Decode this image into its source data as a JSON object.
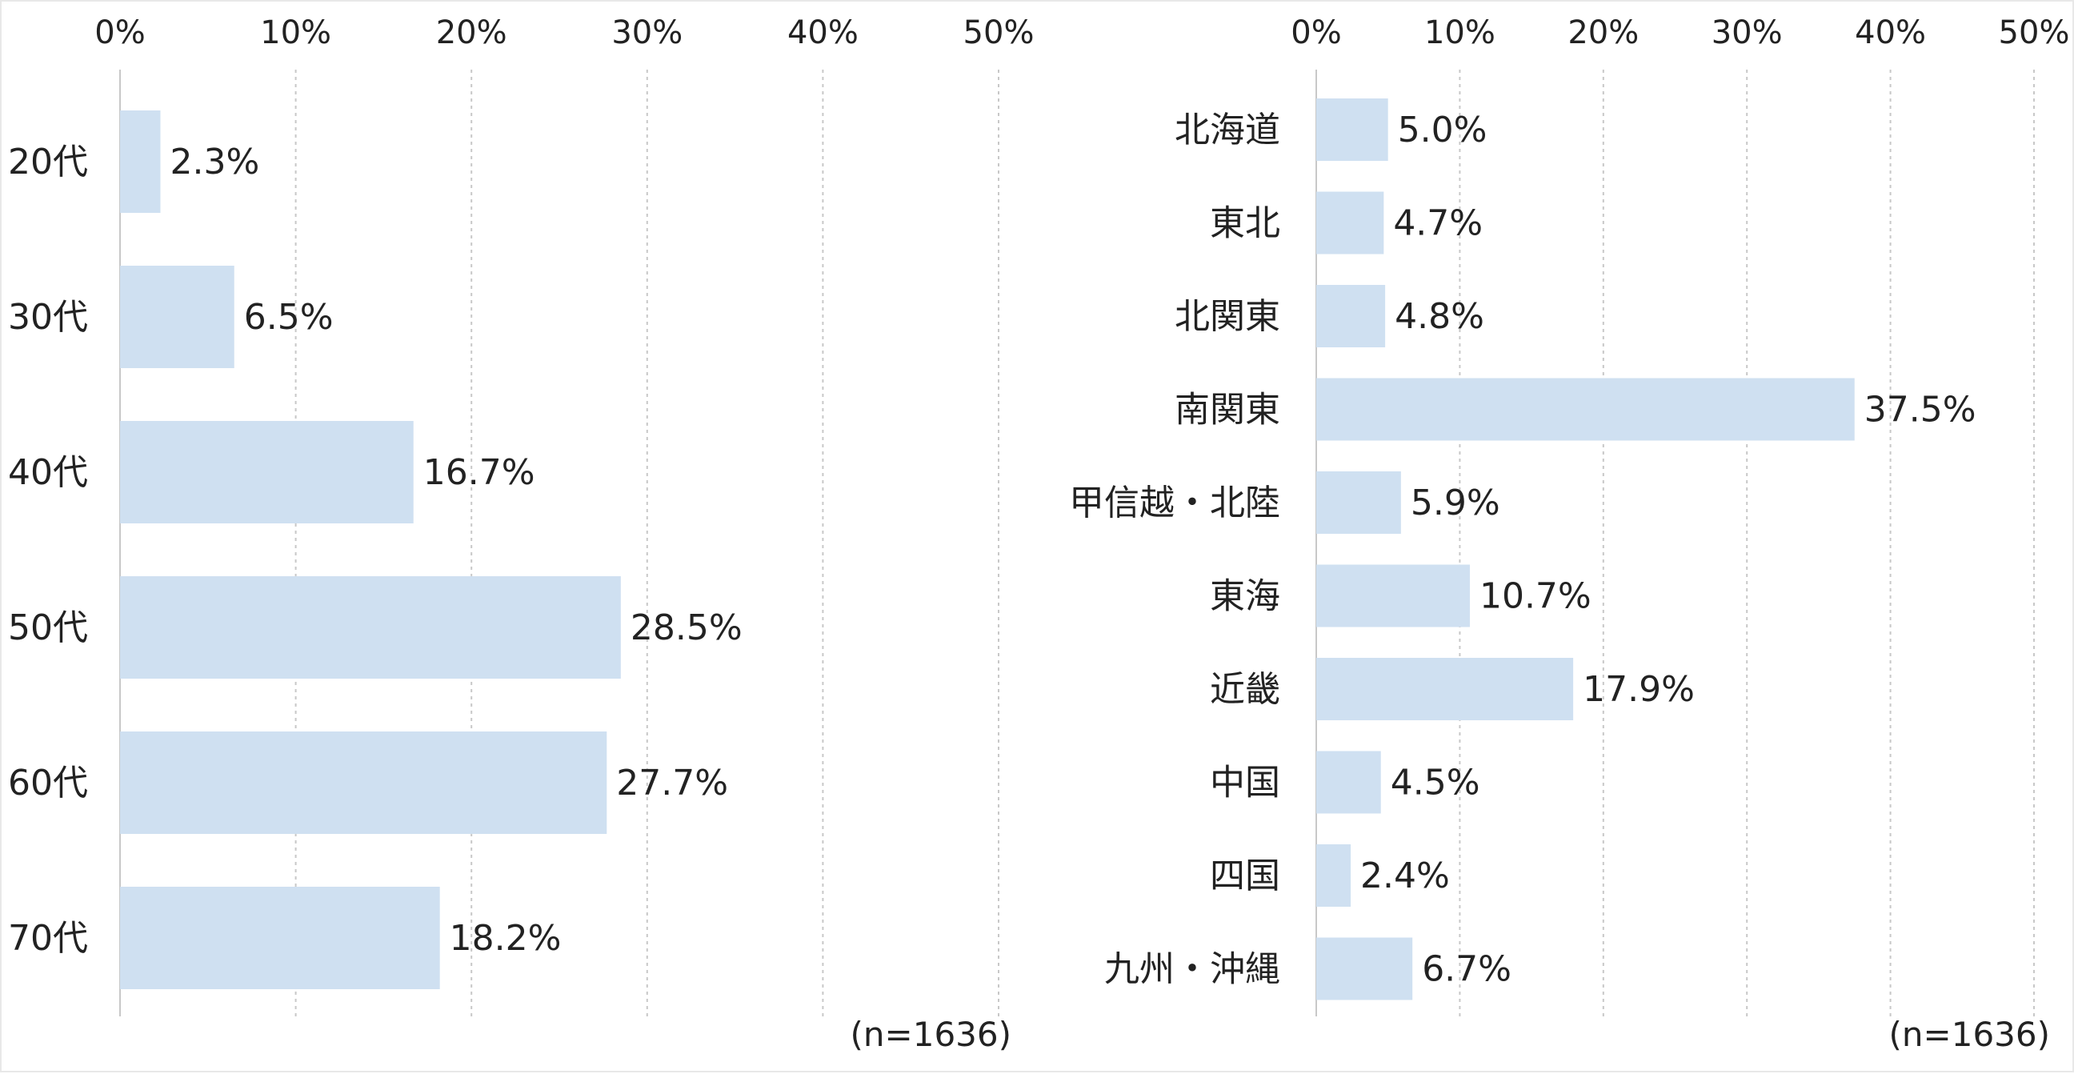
{
  "chart_data": [
    {
      "type": "bar",
      "orientation": "horizontal",
      "categories": [
        "20代",
        "30代",
        "40代",
        "50代",
        "60代",
        "70代"
      ],
      "values": [
        2.3,
        6.5,
        16.7,
        28.5,
        27.7,
        18.2
      ],
      "value_labels": [
        "2.3%",
        "6.5%",
        "16.7%",
        "28.5%",
        "27.7%",
        "18.2%"
      ],
      "xlim": [
        0,
        50
      ],
      "ticks": [
        "0%",
        "10%",
        "20%",
        "30%",
        "40%",
        "50%"
      ],
      "grid": true,
      "note": "(n=1636)",
      "color": "#cfe0f1"
    },
    {
      "type": "bar",
      "orientation": "horizontal",
      "categories": [
        "北海道",
        "東北",
        "北関東",
        "南関東",
        "甲信越・北陸",
        "東海",
        "近畿",
        "中国",
        "四国",
        "九州・沖縄"
      ],
      "values": [
        5.0,
        4.7,
        4.8,
        37.5,
        5.9,
        10.7,
        17.9,
        4.5,
        2.4,
        6.7
      ],
      "value_labels": [
        "5.0%",
        "4.7%",
        "4.8%",
        "37.5%",
        "5.9%",
        "10.7%",
        "17.9%",
        "4.5%",
        "2.4%",
        "6.7%"
      ],
      "xlim": [
        0,
        50
      ],
      "ticks": [
        "0%",
        "10%",
        "20%",
        "30%",
        "40%",
        "50%"
      ],
      "grid": true,
      "note": "(n=1636)",
      "color": "#cfe0f1"
    }
  ]
}
